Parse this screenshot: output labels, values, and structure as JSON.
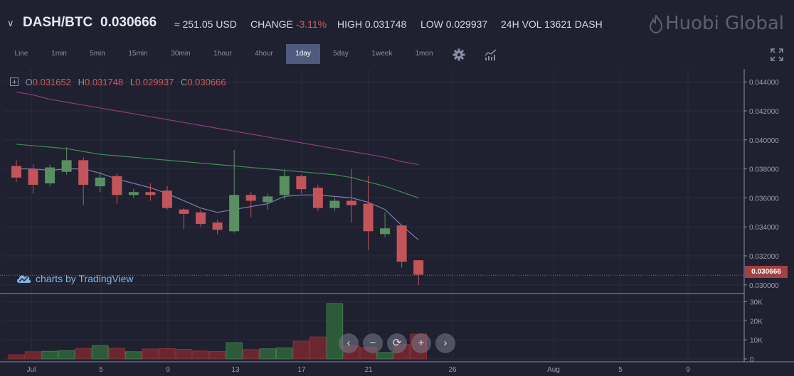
{
  "header": {
    "pair": "DASH/BTC",
    "price": "0.030666",
    "usd_approx": "≈ 251.05 USD",
    "change_label": "CHANGE",
    "change_value": "-3.11%",
    "high": "HIGH 0.031748",
    "low": "LOW 0.029937",
    "volume": "24H VOL 13621 DASH",
    "brand": "Huobi Global"
  },
  "toolbar": {
    "intervals": [
      "Line",
      "1min",
      "5min",
      "15min",
      "30min",
      "1hour",
      "4hour",
      "1day",
      "5day",
      "1week",
      "1mon"
    ],
    "active_interval": "1day",
    "icons": [
      "gear-icon",
      "indicators-icon",
      "fullscreen-icon"
    ]
  },
  "legend": {
    "o_label": "O",
    "o": "0.031652",
    "h_label": "H",
    "h": "0.031748",
    "l_label": "L",
    "l": "0.029937",
    "c_label": "C",
    "c": "0.030666"
  },
  "tradingview_credit": "charts by TradingView",
  "last_price_tag": "0.030666",
  "zoom_controls": [
    "‹",
    "−",
    "⟳",
    "+",
    "›"
  ],
  "colors": {
    "background": "#1f2130",
    "up": "#5a8f62",
    "down": "#c2545a",
    "accent": "#4f5a7f",
    "ma_fast": "#7b7eb0",
    "ma_mid": "#3e8f53",
    "ma_slow": "#8e3c82"
  },
  "chart_data": {
    "type": "candlestick",
    "price_axis_ticks": [
      "0.044000",
      "0.042000",
      "0.040000",
      "0.038000",
      "0.036000",
      "0.034000",
      "0.032000",
      "0.030000"
    ],
    "price_axis_range": [
      0.0295,
      0.0445
    ],
    "volume_axis_ticks": [
      "30K",
      "20K",
      "10K",
      "0"
    ],
    "volume_axis_range": [
      0,
      32000
    ],
    "x_ticks": [
      "Jul",
      "5",
      "9",
      "13",
      "17",
      "21",
      "26",
      "Aug",
      "5",
      "9"
    ],
    "candles": [
      {
        "o": 0.0382,
        "h": 0.0386,
        "c": 0.0374,
        "l": 0.0371,
        "v": 2200
      },
      {
        "o": 0.038,
        "h": 0.0383,
        "c": 0.0369,
        "l": 0.0363,
        "v": 3800
      },
      {
        "o": 0.037,
        "h": 0.0383,
        "c": 0.0381,
        "l": 0.0368,
        "v": 4000
      },
      {
        "o": 0.0378,
        "h": 0.0395,
        "c": 0.0386,
        "l": 0.0376,
        "v": 4300
      },
      {
        "o": 0.0386,
        "h": 0.0388,
        "c": 0.0369,
        "l": 0.0355,
        "v": 5500
      },
      {
        "o": 0.0368,
        "h": 0.0378,
        "c": 0.0374,
        "l": 0.0364,
        "v": 7000
      },
      {
        "o": 0.0375,
        "h": 0.0377,
        "c": 0.0362,
        "l": 0.0356,
        "v": 5600
      },
      {
        "o": 0.0362,
        "h": 0.0366,
        "c": 0.0364,
        "l": 0.036,
        "v": 3800
      },
      {
        "o": 0.0364,
        "h": 0.037,
        "c": 0.0362,
        "l": 0.0358,
        "v": 5200
      },
      {
        "o": 0.0365,
        "h": 0.0368,
        "c": 0.0353,
        "l": 0.0352,
        "v": 5400
      },
      {
        "o": 0.0352,
        "h": 0.0353,
        "c": 0.0349,
        "l": 0.0338,
        "v": 5000
      },
      {
        "o": 0.035,
        "h": 0.0352,
        "c": 0.0342,
        "l": 0.034,
        "v": 4200
      },
      {
        "o": 0.0343,
        "h": 0.0345,
        "c": 0.0338,
        "l": 0.0335,
        "v": 3900
      },
      {
        "o": 0.0337,
        "h": 0.0393,
        "c": 0.0362,
        "l": 0.0336,
        "v": 8500
      },
      {
        "o": 0.0362,
        "h": 0.0364,
        "c": 0.0358,
        "l": 0.0347,
        "v": 4900
      },
      {
        "o": 0.0357,
        "h": 0.0363,
        "c": 0.0361,
        "l": 0.0352,
        "v": 5300
      },
      {
        "o": 0.0362,
        "h": 0.038,
        "c": 0.0375,
        "l": 0.0359,
        "v": 5800
      },
      {
        "o": 0.0375,
        "h": 0.0376,
        "c": 0.0366,
        "l": 0.0363,
        "v": 9300
      },
      {
        "o": 0.0367,
        "h": 0.0369,
        "c": 0.0353,
        "l": 0.0351,
        "v": 11500
      },
      {
        "o": 0.0353,
        "h": 0.036,
        "c": 0.0358,
        "l": 0.0351,
        "v": 29000
      },
      {
        "o": 0.0358,
        "h": 0.038,
        "c": 0.0355,
        "l": 0.0343,
        "v": 6800
      },
      {
        "o": 0.0356,
        "h": 0.0375,
        "c": 0.0337,
        "l": 0.0324,
        "v": 6000
      },
      {
        "o": 0.0335,
        "h": 0.035,
        "c": 0.0339,
        "l": 0.0333,
        "v": 3400
      },
      {
        "o": 0.0341,
        "h": 0.0341,
        "c": 0.0316,
        "l": 0.0312,
        "v": 7500
      },
      {
        "o": 0.0317,
        "h": 0.0317,
        "c": 0.0307,
        "l": 0.03,
        "v": 13000
      }
    ],
    "ma_fast": [
      0.038,
      0.038,
      0.0379,
      0.038,
      0.038,
      0.0377,
      0.0373,
      0.037,
      0.0367,
      0.0363,
      0.0358,
      0.0353,
      0.035,
      0.0352,
      0.0354,
      0.0356,
      0.0361,
      0.0362,
      0.0362,
      0.0361,
      0.036,
      0.0357,
      0.0352,
      0.0341,
      0.0331
    ],
    "ma_mid": [
      0.0397,
      0.0396,
      0.0395,
      0.0394,
      0.0392,
      0.039,
      0.0389,
      0.0388,
      0.0387,
      0.0386,
      0.0385,
      0.0384,
      0.0383,
      0.0382,
      0.0381,
      0.038,
      0.0379,
      0.0378,
      0.0377,
      0.0376,
      0.0374,
      0.0371,
      0.0368,
      0.0364,
      0.036
    ],
    "ma_slow": [
      0.0433,
      0.0431,
      0.0428,
      0.0426,
      0.0424,
      0.0422,
      0.042,
      0.0418,
      0.0416,
      0.0414,
      0.0412,
      0.041,
      0.0408,
      0.0406,
      0.0404,
      0.0402,
      0.04,
      0.0398,
      0.0396,
      0.0394,
      0.0392,
      0.039,
      0.0388,
      0.0385,
      0.0383
    ],
    "last_price": 0.030666
  }
}
